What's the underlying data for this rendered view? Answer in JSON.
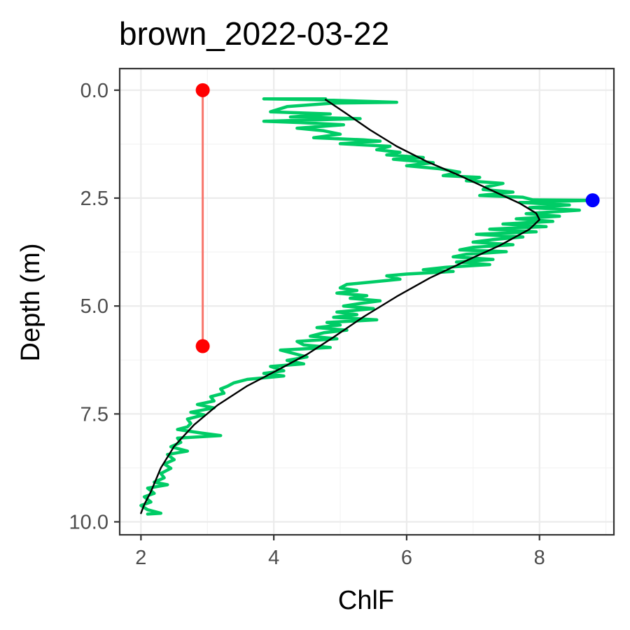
{
  "chart_data": {
    "type": "line",
    "title": "brown_2022-03-22",
    "xlabel": "ChlF",
    "ylabel": "Depth (m)",
    "xlim": [
      1.68,
      9.12
    ],
    "ylim": [
      10.3,
      -0.5
    ],
    "y_reversed": true,
    "grid": true,
    "x_ticks": [
      2,
      4,
      6,
      8
    ],
    "x_tick_labels": [
      "2",
      "4",
      "6",
      "8"
    ],
    "y_ticks": [
      0,
      2.5,
      5,
      7.5,
      10
    ],
    "y_tick_labels": [
      "0.0",
      "2.5",
      "5.0",
      "7.5",
      "10.0"
    ],
    "colors": {
      "profile": "#00cc66",
      "fit": "#000000",
      "range": "#f8766d",
      "range_points": "#ff0000",
      "peak": "#0000ff"
    },
    "series": [
      {
        "kind": "profile",
        "points": [
          [
            4.78,
            0.2
          ],
          [
            3.85,
            0.2
          ],
          [
            4.6,
            0.22
          ],
          [
            5.85,
            0.28
          ],
          [
            4.9,
            0.3
          ],
          [
            4.2,
            0.38
          ],
          [
            3.95,
            0.5
          ],
          [
            4.85,
            0.55
          ],
          [
            4.25,
            0.62
          ],
          [
            5.3,
            0.66
          ],
          [
            3.85,
            0.72
          ],
          [
            4.4,
            0.75
          ],
          [
            5.05,
            0.8
          ],
          [
            4.35,
            0.88
          ],
          [
            4.75,
            0.94
          ],
          [
            5.0,
            1.02
          ],
          [
            4.6,
            1.1
          ],
          [
            5.35,
            1.15
          ],
          [
            5.6,
            1.18
          ],
          [
            5.0,
            1.24
          ],
          [
            5.75,
            1.3
          ],
          [
            5.55,
            1.38
          ],
          [
            5.9,
            1.44
          ],
          [
            5.7,
            1.5
          ],
          [
            6.25,
            1.56
          ],
          [
            5.8,
            1.6
          ],
          [
            6.4,
            1.68
          ],
          [
            6.0,
            1.75
          ],
          [
            6.5,
            1.82
          ],
          [
            6.8,
            1.9
          ],
          [
            6.55,
            1.98
          ],
          [
            7.1,
            2.02
          ],
          [
            6.9,
            2.1
          ],
          [
            7.45,
            2.16
          ],
          [
            7.2,
            2.24
          ],
          [
            7.15,
            2.3
          ],
          [
            7.6,
            2.36
          ],
          [
            7.1,
            2.44
          ],
          [
            7.75,
            2.48
          ],
          [
            7.9,
            2.54
          ],
          [
            8.8,
            2.55
          ],
          [
            7.7,
            2.6
          ],
          [
            8.45,
            2.66
          ],
          [
            7.85,
            2.72
          ],
          [
            8.6,
            2.78
          ],
          [
            7.8,
            2.86
          ],
          [
            8.3,
            2.92
          ],
          [
            7.65,
            2.98
          ],
          [
            8.2,
            3.04
          ],
          [
            7.45,
            3.1
          ],
          [
            8.1,
            3.16
          ],
          [
            7.25,
            3.22
          ],
          [
            7.95,
            3.28
          ],
          [
            7.05,
            3.34
          ],
          [
            7.75,
            3.4
          ],
          [
            7.3,
            3.46
          ],
          [
            7.0,
            3.52
          ],
          [
            7.6,
            3.58
          ],
          [
            7.0,
            3.64
          ],
          [
            6.8,
            3.7
          ],
          [
            7.5,
            3.74
          ],
          [
            6.9,
            3.8
          ],
          [
            6.7,
            3.86
          ],
          [
            7.3,
            3.92
          ],
          [
            6.75,
            3.98
          ],
          [
            7.25,
            4.04
          ],
          [
            6.6,
            4.1
          ],
          [
            6.25,
            4.16
          ],
          [
            6.7,
            4.2
          ],
          [
            6.0,
            4.26
          ],
          [
            5.7,
            4.3
          ],
          [
            5.9,
            4.38
          ],
          [
            5.5,
            4.44
          ],
          [
            5.1,
            4.5
          ],
          [
            5.0,
            4.58
          ],
          [
            5.25,
            4.64
          ],
          [
            4.95,
            4.7
          ],
          [
            5.4,
            4.76
          ],
          [
            5.15,
            4.82
          ],
          [
            5.6,
            4.88
          ],
          [
            5.3,
            4.94
          ],
          [
            5.05,
            5.0
          ],
          [
            5.5,
            5.06
          ],
          [
            4.95,
            5.14
          ],
          [
            5.25,
            5.2
          ],
          [
            4.9,
            5.26
          ],
          [
            5.55,
            5.32
          ],
          [
            4.8,
            5.38
          ],
          [
            5.0,
            5.44
          ],
          [
            4.65,
            5.5
          ],
          [
            5.1,
            5.56
          ],
          [
            4.75,
            5.62
          ],
          [
            4.55,
            5.7
          ],
          [
            4.95,
            5.76
          ],
          [
            4.35,
            5.82
          ],
          [
            4.45,
            5.9
          ],
          [
            4.85,
            5.96
          ],
          [
            4.1,
            6.02
          ],
          [
            4.3,
            6.1
          ],
          [
            4.5,
            6.18
          ],
          [
            4.2,
            6.26
          ],
          [
            4.45,
            6.34
          ],
          [
            3.95,
            6.4
          ],
          [
            4.15,
            6.5
          ],
          [
            3.85,
            6.56
          ],
          [
            4.15,
            6.62
          ],
          [
            3.6,
            6.7
          ],
          [
            3.4,
            6.78
          ],
          [
            3.3,
            6.86
          ],
          [
            3.2,
            6.92
          ],
          [
            3.25,
            7.02
          ],
          [
            3.05,
            7.1
          ],
          [
            3.1,
            7.2
          ],
          [
            2.85,
            7.28
          ],
          [
            3.1,
            7.36
          ],
          [
            2.75,
            7.46
          ],
          [
            2.95,
            7.52
          ],
          [
            2.7,
            7.62
          ],
          [
            2.75,
            7.72
          ],
          [
            2.7,
            7.8
          ],
          [
            2.55,
            7.86
          ],
          [
            2.9,
            7.94
          ],
          [
            3.2,
            8.0
          ],
          [
            2.55,
            8.06
          ],
          [
            2.6,
            8.16
          ],
          [
            2.45,
            8.26
          ],
          [
            2.7,
            8.36
          ],
          [
            2.4,
            8.44
          ],
          [
            2.5,
            8.56
          ],
          [
            2.35,
            8.66
          ],
          [
            2.45,
            8.76
          ],
          [
            2.3,
            8.88
          ],
          [
            2.35,
            8.98
          ],
          [
            2.2,
            9.08
          ],
          [
            2.4,
            9.14
          ],
          [
            2.1,
            9.22
          ],
          [
            2.2,
            9.34
          ],
          [
            2.05,
            9.42
          ],
          [
            2.15,
            9.54
          ],
          [
            2.0,
            9.62
          ],
          [
            2.1,
            9.72
          ],
          [
            2.3,
            9.8
          ],
          [
            2.1,
            9.82
          ]
        ]
      },
      {
        "kind": "fit",
        "points": [
          [
            4.78,
            0.22
          ],
          [
            5.1,
            0.55
          ],
          [
            5.45,
            0.92
          ],
          [
            5.85,
            1.3
          ],
          [
            6.3,
            1.65
          ],
          [
            6.8,
            1.98
          ],
          [
            7.25,
            2.3
          ],
          [
            7.7,
            2.62
          ],
          [
            7.95,
            2.85
          ],
          [
            8.0,
            3.0
          ],
          [
            7.85,
            3.22
          ],
          [
            7.4,
            3.6
          ],
          [
            6.9,
            3.95
          ],
          [
            6.35,
            4.35
          ],
          [
            5.85,
            4.78
          ],
          [
            5.35,
            5.25
          ],
          [
            4.9,
            5.72
          ],
          [
            4.5,
            6.12
          ],
          [
            4.1,
            6.45
          ],
          [
            3.6,
            6.85
          ],
          [
            3.15,
            7.3
          ],
          [
            2.8,
            7.75
          ],
          [
            2.5,
            8.25
          ],
          [
            2.3,
            8.75
          ],
          [
            2.15,
            9.3
          ],
          [
            2.05,
            9.6
          ],
          [
            2.0,
            9.8
          ]
        ]
      }
    ],
    "range_segment": {
      "x": 2.93,
      "y_start": 0.0,
      "y_end": 5.93
    },
    "peak_point": {
      "x": 8.8,
      "y": 2.55
    }
  }
}
